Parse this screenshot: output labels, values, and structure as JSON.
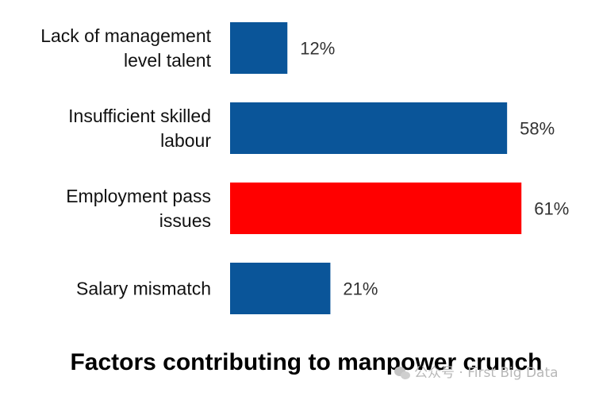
{
  "chart_data": {
    "type": "bar",
    "orientation": "horizontal",
    "title": "Factors contributing to manpower crunch",
    "categories": [
      [
        "Lack of management",
        "level talent"
      ],
      [
        "Insufficient skilled",
        "labour"
      ],
      [
        "Employment pass",
        "issues"
      ],
      [
        "Salary mismatch"
      ]
    ],
    "values": [
      12,
      58,
      61,
      21
    ],
    "value_labels": [
      "12%",
      "58%",
      "61%",
      "21%"
    ],
    "xlim": [
      0,
      100
    ],
    "grid": false,
    "legend": "none",
    "colors": {
      "default": "#0a5599",
      "highlight": "#ff0000",
      "highlight_index": 2
    }
  },
  "watermark": {
    "text": "公众号 · First Big Data",
    "icon": "wechat-icon"
  }
}
